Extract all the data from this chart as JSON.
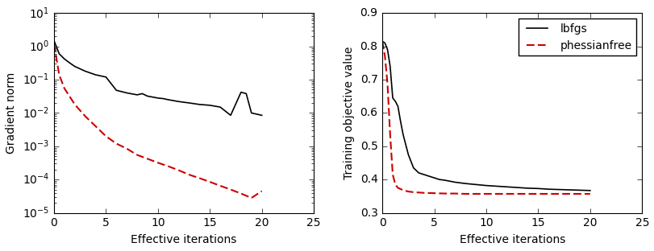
{
  "lbfgs_grad_x": [
    0,
    0.5,
    1,
    1.5,
    2,
    3,
    4,
    5,
    6,
    7,
    8,
    8.5,
    9,
    9.5,
    10,
    10.5,
    11,
    12,
    13,
    14,
    15,
    16,
    17,
    18,
    18.5,
    19,
    20
  ],
  "lbfgs_grad_y": [
    1.5,
    0.6,
    0.42,
    0.32,
    0.25,
    0.18,
    0.14,
    0.12,
    0.048,
    0.04,
    0.035,
    0.038,
    0.032,
    0.03,
    0.028,
    0.027,
    0.025,
    0.022,
    0.02,
    0.018,
    0.017,
    0.015,
    0.0085,
    0.042,
    0.038,
    0.01,
    0.0085
  ],
  "phf_grad_x": [
    0,
    0.5,
    1,
    2,
    3,
    4,
    5,
    6,
    7,
    8,
    9,
    10,
    11,
    12,
    13,
    14,
    15,
    16,
    17,
    18,
    19,
    20
  ],
  "phf_grad_y": [
    1.2,
    0.14,
    0.055,
    0.018,
    0.008,
    0.004,
    0.002,
    0.0012,
    0.00085,
    0.00055,
    0.00042,
    0.00032,
    0.00025,
    0.00019,
    0.00014,
    0.00011,
    8.5e-05,
    6.5e-05,
    5e-05,
    3.8e-05,
    2.8e-05,
    4.5e-05
  ],
  "lbfgs_obj_x": [
    0,
    0.25,
    0.5,
    0.75,
    1.0,
    1.25,
    1.5,
    1.75,
    2.0,
    2.5,
    3.0,
    3.5,
    4.0,
    4.5,
    5.0,
    5.5,
    6.0,
    7.0,
    8.0,
    9.0,
    10.0,
    11.0,
    12.0,
    13.0,
    14.0,
    15.0,
    16.0,
    17.0,
    18.0,
    19.0,
    20.0
  ],
  "lbfgs_obj_y": [
    0.815,
    0.81,
    0.79,
    0.74,
    0.645,
    0.635,
    0.62,
    0.575,
    0.535,
    0.475,
    0.435,
    0.42,
    0.415,
    0.41,
    0.405,
    0.4,
    0.398,
    0.392,
    0.388,
    0.385,
    0.382,
    0.38,
    0.378,
    0.376,
    0.374,
    0.373,
    0.371,
    0.37,
    0.369,
    0.368,
    0.367
  ],
  "phf_obj_x": [
    0,
    0.25,
    0.5,
    0.75,
    1.0,
    1.25,
    1.5,
    2.0,
    2.5,
    3.0,
    4.0,
    5.0,
    6.0,
    7.0,
    8.0,
    10.0,
    12.0,
    14.0,
    16.0,
    18.0,
    20.0
  ],
  "phf_obj_y": [
    0.815,
    0.77,
    0.685,
    0.535,
    0.415,
    0.385,
    0.375,
    0.368,
    0.364,
    0.362,
    0.36,
    0.359,
    0.358,
    0.358,
    0.357,
    0.357,
    0.357,
    0.357,
    0.357,
    0.357,
    0.357
  ],
  "lbfgs_color": "#000000",
  "phf_color": "#cc0000",
  "lbfgs_label": "lbfgs",
  "phf_label": "phessianfree",
  "xlabel": "Effective iterations",
  "ylabel_left": "Gradient norm",
  "ylabel_right": "Training objective value",
  "xlim": [
    0,
    25
  ],
  "ylim_left_bottom": 1e-05,
  "ylim_left_top": 10,
  "ylim_right": [
    0.3,
    0.9
  ],
  "xticks": [
    0,
    5,
    10,
    15,
    20,
    25
  ],
  "yticks_right": [
    0.3,
    0.4,
    0.5,
    0.6,
    0.7,
    0.8,
    0.9
  ],
  "figsize": [
    8.12,
    3.12
  ],
  "dpi": 100
}
